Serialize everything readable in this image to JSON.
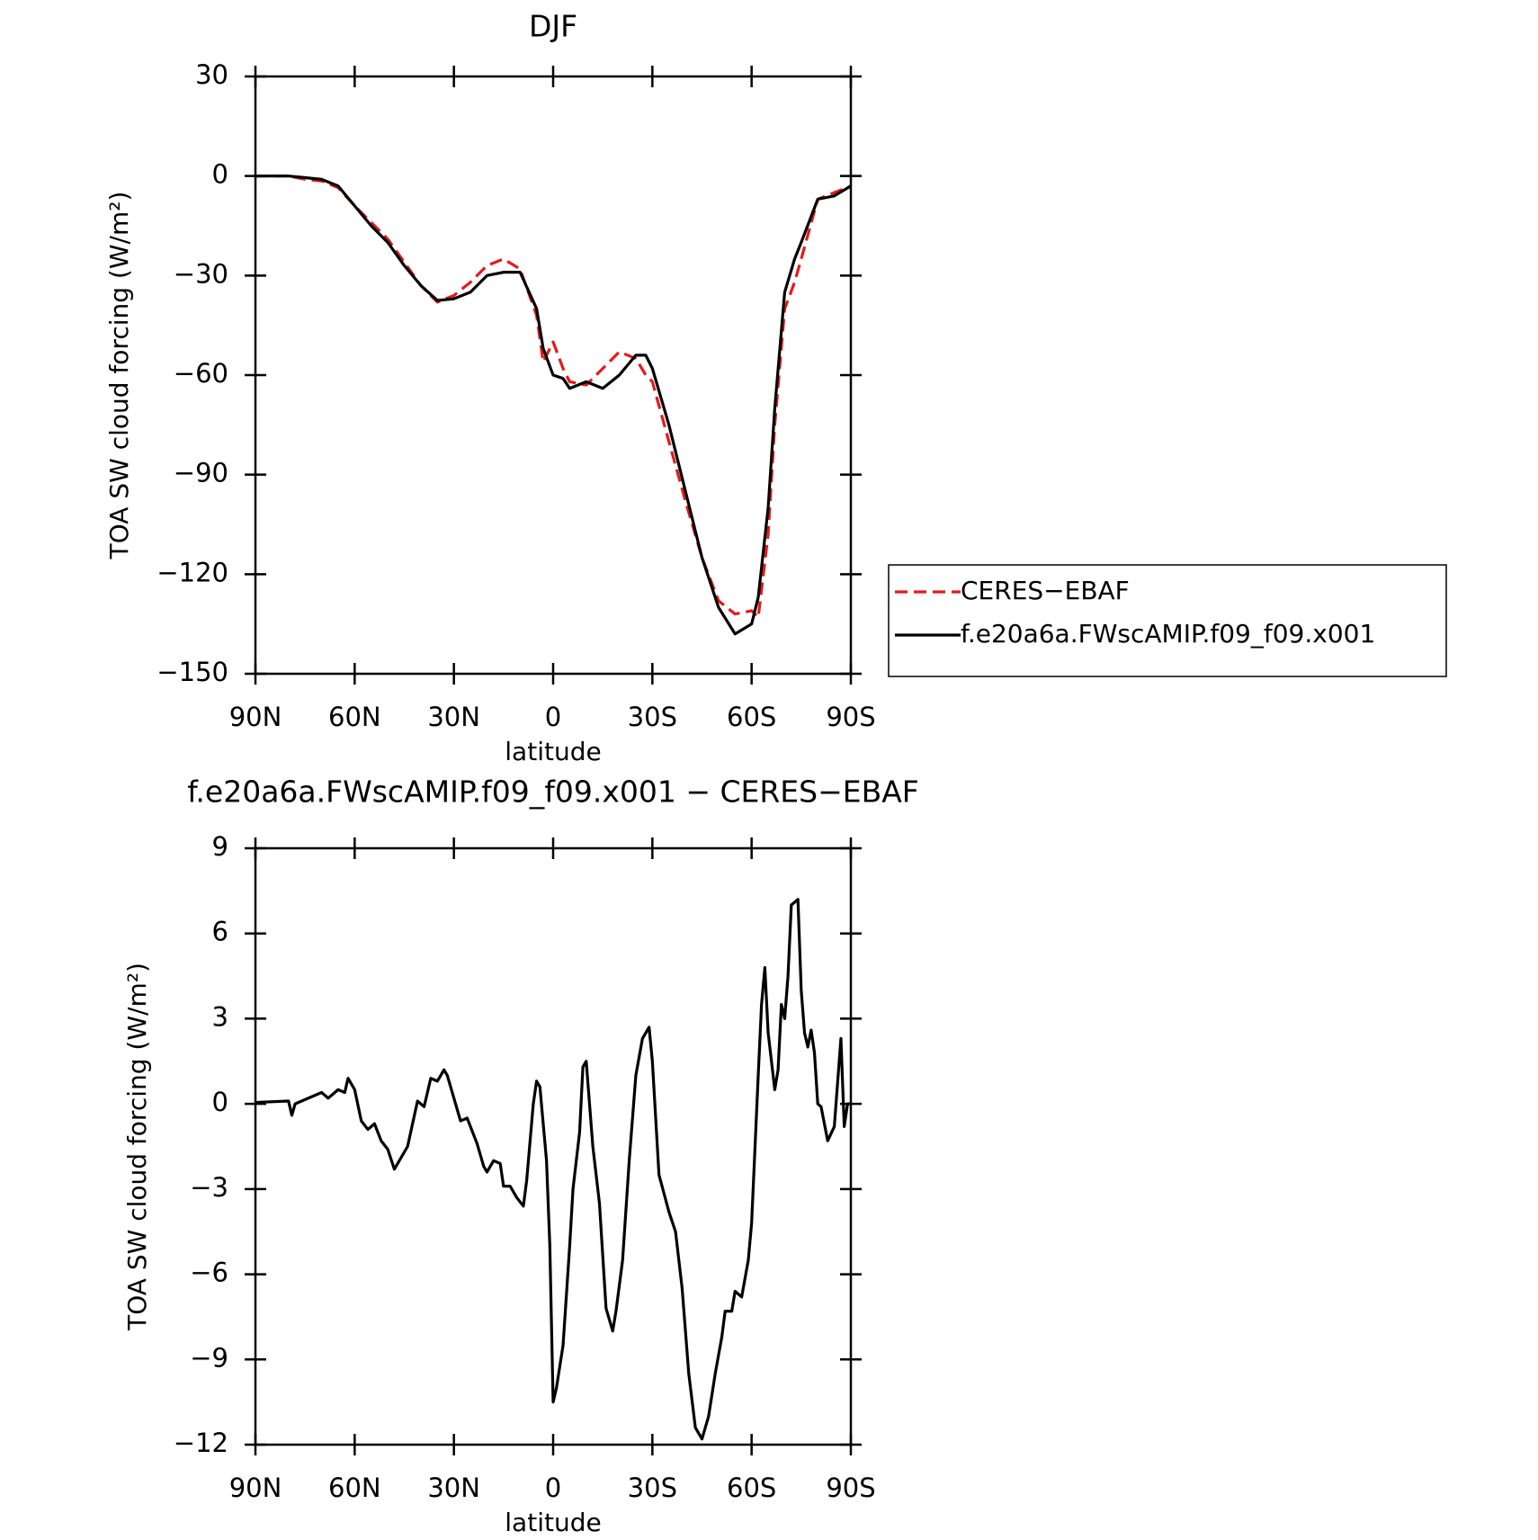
{
  "chart_data": [
    {
      "type": "line",
      "title": "DJF",
      "xlabel": "latitude",
      "ylabel": "TOA SW cloud forcing (W/m²)",
      "x": [
        90,
        85,
        80,
        75,
        70,
        65,
        60,
        55,
        50,
        45,
        40,
        35,
        30,
        25,
        20,
        15,
        10,
        5,
        3,
        0,
        -3,
        -5,
        -10,
        -15,
        -20,
        -25,
        -28,
        -30,
        -35,
        -40,
        -45,
        -50,
        -55,
        -60,
        -62,
        -65,
        -67,
        -70,
        -73,
        -75,
        -80,
        -85,
        -90
      ],
      "series": [
        {
          "name": "CERES−EBAF",
          "color": "#e41a1c",
          "dashed": true,
          "values": [
            0,
            0,
            0,
            -1,
            -1.5,
            -3.5,
            -9,
            -14,
            -19,
            -26,
            -33,
            -38,
            -36,
            -32,
            -27,
            -25,
            -28,
            -42,
            -56,
            -50,
            -58,
            -62,
            -63,
            -58,
            -53,
            -55,
            -60,
            -62,
            -80,
            -98,
            -115,
            -128,
            -132,
            -131,
            -133,
            -108,
            -75,
            -40,
            -32,
            -25,
            -7,
            -5,
            -3
          ]
        },
        {
          "name": "f.e20a6a.FWscAMIP.f09_f09.x001",
          "color": "#000000",
          "dashed": false,
          "values": [
            0,
            0,
            0,
            -0.5,
            -1,
            -3,
            -9,
            -15,
            -20,
            -27,
            -33,
            -37.5,
            -37,
            -35,
            -30,
            -29,
            -29,
            -40,
            -52,
            -60,
            -61,
            -64,
            -62,
            -64,
            -60,
            -54,
            -54,
            -58,
            -75,
            -95,
            -115,
            -130,
            -138,
            -135,
            -127,
            -100,
            -70,
            -35,
            -25,
            -20,
            -7,
            -6,
            -3
          ]
        }
      ],
      "xlim": [
        90,
        -90
      ],
      "xticks": [
        {
          "value": 90,
          "label": "90N"
        },
        {
          "value": 60,
          "label": "60N"
        },
        {
          "value": 30,
          "label": "30N"
        },
        0,
        {
          "value": -30,
          "label": "30S"
        },
        {
          "value": -60,
          "label": "60S"
        },
        {
          "value": -90,
          "label": "90S"
        }
      ],
      "ylim": [
        -150,
        30
      ],
      "yticks": [
        {
          "value": -150,
          "label": "−150"
        },
        {
          "value": -120,
          "label": "−120"
        },
        {
          "value": -90,
          "label": "−90"
        },
        {
          "value": -60,
          "label": "−60"
        },
        {
          "value": -30,
          "label": "−30"
        },
        0,
        30
      ],
      "legend": "right"
    },
    {
      "type": "line",
      "title": "f.e20a6a.FWscAMIP.f09_f09.x001 − CERES−EBAF",
      "xlabel": "latitude",
      "ylabel": "TOA SW cloud forcing (W/m²)",
      "x": [
        90,
        80,
        79,
        78,
        70,
        68,
        65,
        63,
        62,
        60,
        58,
        56,
        54,
        52,
        50,
        48,
        46,
        44,
        41,
        39,
        37,
        35,
        33,
        32,
        30,
        28,
        26,
        25,
        23,
        21,
        20,
        18,
        16,
        15,
        13,
        11,
        9,
        8,
        6,
        5,
        4,
        2,
        1,
        0,
        -1,
        -3,
        -5,
        -6,
        -8,
        -9,
        -10,
        -12,
        -14,
        -16,
        -18,
        -19,
        -21,
        -23,
        -25,
        -27,
        -29,
        -30,
        -32,
        -35,
        -37,
        -39,
        -41,
        -43,
        -45,
        -47,
        -49,
        -51,
        -52,
        -54,
        -55,
        -57,
        -59,
        -60,
        -62,
        -63,
        -64,
        -65,
        -67,
        -68,
        -69,
        -70,
        -71,
        -72,
        -74,
        -75,
        -76,
        -77,
        -78,
        -79,
        -80,
        -81,
        -83,
        -85,
        -87,
        -88,
        -89,
        -90
      ],
      "values": [
        0.05,
        0.1,
        -0.4,
        0,
        0.4,
        0.2,
        0.5,
        0.4,
        0.9,
        0.5,
        -0.6,
        -0.9,
        -0.7,
        -1.3,
        -1.6,
        -2.3,
        -1.9,
        -1.5,
        0.1,
        -0.1,
        0.9,
        0.8,
        1.2,
        1.0,
        0.2,
        -0.6,
        -0.5,
        -0.8,
        -1.4,
        -2.2,
        -2.4,
        -2.0,
        -2.1,
        -2.9,
        -2.9,
        -3.3,
        -3.6,
        -2.7,
        0,
        0.8,
        0.6,
        -2.0,
        -5.0,
        -10.5,
        -10.0,
        -8.5,
        -5.0,
        -3.0,
        -1.0,
        1.3,
        1.5,
        -1.5,
        -3.5,
        -7.2,
        -8.0,
        -7.3,
        -5.5,
        -2.0,
        1.0,
        2.3,
        2.7,
        1.5,
        -2.5,
        -3.8,
        -4.5,
        -6.5,
        -9.5,
        -11.4,
        -11.8,
        -11.0,
        -9.5,
        -8.2,
        -7.3,
        -7.3,
        -6.6,
        -6.8,
        -5.5,
        -4.2,
        1.0,
        3.5,
        4.8,
        2.5,
        0.5,
        1.2,
        3.5,
        3.0,
        4.5,
        7.0,
        7.2,
        4.0,
        2.5,
        2.0,
        2.6,
        1.8,
        0,
        -0.1,
        -1.3,
        -0.8,
        2.3,
        -0.8,
        0,
        0
      ],
      "color": "#000000",
      "xlim": [
        90,
        -90
      ],
      "xticks": [
        {
          "value": 90,
          "label": "90N"
        },
        {
          "value": 60,
          "label": "60N"
        },
        {
          "value": 30,
          "label": "30N"
        },
        0,
        {
          "value": -30,
          "label": "30S"
        },
        {
          "value": -60,
          "label": "60S"
        },
        {
          "value": -90,
          "label": "90S"
        }
      ],
      "ylim": [
        -12,
        9
      ],
      "yticks": [
        {
          "value": -12,
          "label": "−12"
        },
        {
          "value": -9,
          "label": "−9"
        },
        {
          "value": -6,
          "label": "−6"
        },
        {
          "value": -3,
          "label": "−3"
        },
        0,
        3,
        6,
        9
      ]
    }
  ]
}
